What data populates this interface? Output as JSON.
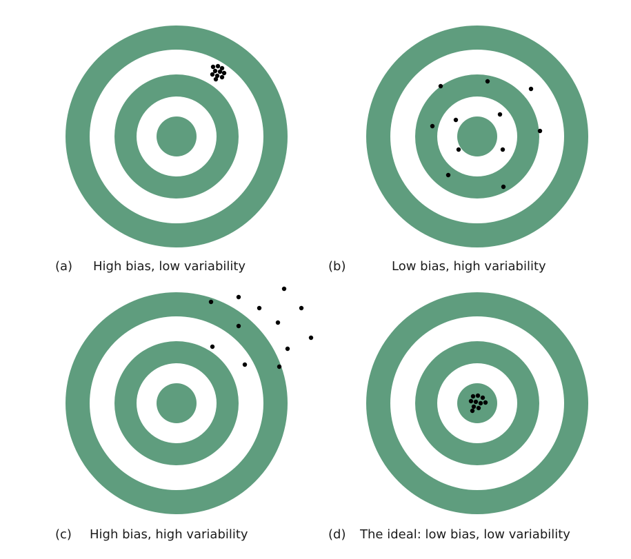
{
  "colors": {
    "ring": "#5f9d7e",
    "background": "#ffffff",
    "shot": "#000000"
  },
  "panels": [
    {
      "id": "a",
      "letter": "(a)",
      "caption": "High bias, low variability"
    },
    {
      "id": "b",
      "letter": "(b)",
      "caption": "Low bias, high variability"
    },
    {
      "id": "c",
      "letter": "(c)",
      "caption": "High bias, high variability"
    },
    {
      "id": "d",
      "letter": "(d)",
      "caption": "The ideal: low bias, low variability"
    }
  ]
}
